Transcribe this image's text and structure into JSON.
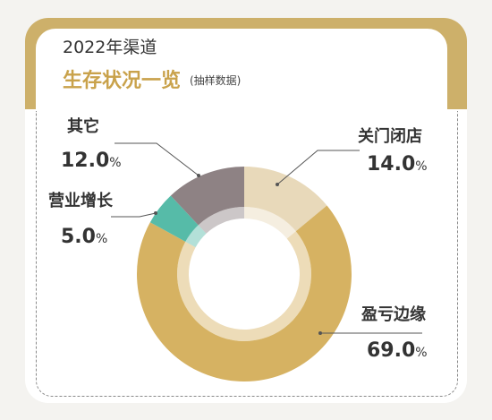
{
  "header": {
    "line1": "2022年渠道",
    "line2": "生存状况一览",
    "line2_note": "(抽样数据)"
  },
  "colors": {
    "accent": "#cdb06a",
    "slice_closed": "#e8d9ba",
    "slice_margin": "#d6b262",
    "slice_growth": "#56bba8",
    "slice_other": "#8e8284"
  },
  "chart_data": {
    "type": "pie",
    "title": "生存状况一览",
    "categories": [
      "关门闭店",
      "盈亏边缘",
      "营业增长",
      "其它"
    ],
    "values": [
      14.0,
      69.0,
      5.0,
      12.0
    ],
    "unit": "%",
    "donut": true,
    "labels": [
      {
        "name": "关门闭店",
        "value": "14.0",
        "unit": "%"
      },
      {
        "name": "盈亏边缘",
        "value": "69.0",
        "unit": "%"
      },
      {
        "name": "营业增长",
        "value": "5.0",
        "unit": "%"
      },
      {
        "name": "其它",
        "value": "12.0",
        "unit": "%"
      }
    ]
  }
}
